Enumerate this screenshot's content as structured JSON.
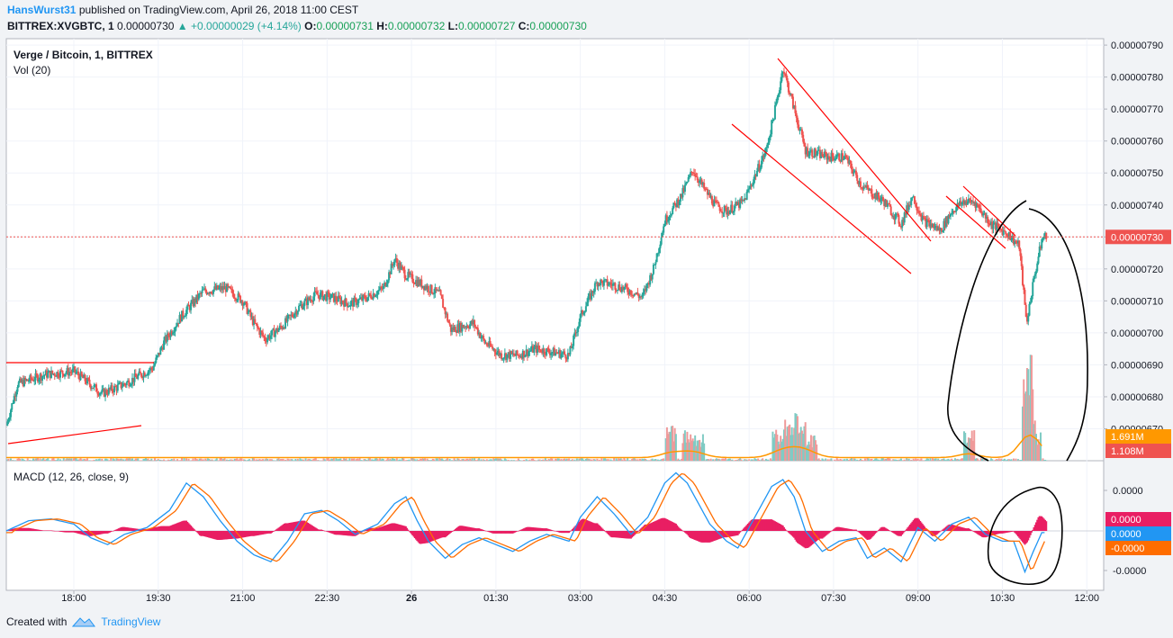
{
  "header": {
    "author": "HansWurst31",
    "published_text": "published on TradingView.com, April 26, 2018 11:00 CEST",
    "symbol": "BITTREX:XVGBTC, 1",
    "close_value": "0.00000730",
    "change_arrow": "▲",
    "change": "+0.00000029 (+4.14%)",
    "o_label": "O:",
    "o_value": "0.00000731",
    "h_label": "H:",
    "h_value": "0.00000732",
    "l_label": "L:",
    "l_value": "0.00000727",
    "c_label": "C:",
    "c_value": "0.00000730"
  },
  "legend": {
    "instrument": "Verge / Bitcoin, 1, BITTREX",
    "volume": "Vol (20)",
    "macd": "MACD (12, 26, close, 9)"
  },
  "footer": {
    "created_with": "Created with",
    "brand": "TradingView"
  },
  "colors": {
    "up": "#26a69a",
    "down": "#ef5350",
    "macd": "#2196f3",
    "signal": "#ff6d00",
    "hist": "#e91e63",
    "drawing": "#ff0000",
    "ink": "#000000"
  },
  "chart_data": {
    "type": "candlestick",
    "price_axis_labels": [
      "0.00000790",
      "0.00000780",
      "0.00000770",
      "0.00000760",
      "0.00000750",
      "0.00000740",
      "0.00000730",
      "0.00000720",
      "0.00000710",
      "0.00000700",
      "0.00000690",
      "0.00000680",
      "0.00000670"
    ],
    "price_ylim": [
      6.6e-06,
      7.92e-06
    ],
    "time_labels": [
      "18:00",
      "19:30",
      "21:00",
      "22:30",
      "26",
      "01:30",
      "03:00",
      "04:30",
      "06:00",
      "07:30",
      "09:00",
      "10:30",
      "12:00"
    ],
    "time_hours": [
      18,
      19.5,
      21,
      22.5,
      24,
      25.5,
      27,
      28.5,
      30,
      31.5,
      33,
      34.5,
      36
    ],
    "x_range_hours": [
      16.8,
      36.3
    ],
    "last_price_label": "0.00000730",
    "last_price": 7.3e-06,
    "price_path": [
      [
        16.8,
        671
      ],
      [
        17.0,
        684
      ],
      [
        17.5,
        687
      ],
      [
        18.0,
        688
      ],
      [
        18.5,
        681
      ],
      [
        18.9,
        684
      ],
      [
        19.2,
        687
      ],
      [
        19.4,
        689
      ],
      [
        19.6,
        697
      ],
      [
        19.9,
        705
      ],
      [
        20.3,
        713
      ],
      [
        20.7,
        714
      ],
      [
        21.0,
        710
      ],
      [
        21.2,
        703
      ],
      [
        21.4,
        698
      ],
      [
        21.7,
        702
      ],
      [
        22.0,
        708
      ],
      [
        22.3,
        712
      ],
      [
        22.6,
        711
      ],
      [
        22.9,
        709
      ],
      [
        23.2,
        711
      ],
      [
        23.5,
        714
      ],
      [
        23.7,
        723
      ],
      [
        23.9,
        718
      ],
      [
        24.2,
        715
      ],
      [
        24.5,
        712
      ],
      [
        24.7,
        701
      ],
      [
        25.1,
        703
      ],
      [
        25.3,
        697
      ],
      [
        25.6,
        693
      ],
      [
        25.9,
        693
      ],
      [
        26.2,
        695
      ],
      [
        26.5,
        694
      ],
      [
        26.8,
        693
      ],
      [
        27.0,
        705
      ],
      [
        27.3,
        716
      ],
      [
        27.6,
        715
      ],
      [
        27.9,
        713
      ],
      [
        28.1,
        711
      ],
      [
        28.3,
        720
      ],
      [
        28.5,
        735
      ],
      [
        28.8,
        743
      ],
      [
        29.0,
        751
      ],
      [
        29.2,
        745
      ],
      [
        29.4,
        740
      ],
      [
        29.6,
        738
      ],
      [
        29.9,
        741
      ],
      [
        30.0,
        745
      ],
      [
        30.3,
        757
      ],
      [
        30.5,
        773
      ],
      [
        30.6,
        783
      ],
      [
        30.8,
        770
      ],
      [
        31.0,
        757
      ],
      [
        31.4,
        755
      ],
      [
        31.7,
        755
      ],
      [
        32.0,
        746
      ],
      [
        32.4,
        741
      ],
      [
        32.7,
        734
      ],
      [
        32.9,
        743
      ],
      [
        33.1,
        735
      ],
      [
        33.4,
        732
      ],
      [
        33.6,
        738
      ],
      [
        33.8,
        741
      ],
      [
        34.0,
        741
      ],
      [
        34.3,
        734
      ],
      [
        34.6,
        731
      ],
      [
        34.8,
        727
      ],
      [
        34.93,
        703
      ],
      [
        35.05,
        716
      ],
      [
        35.2,
        729
      ],
      [
        35.3,
        731
      ]
    ],
    "volume_labels": [
      "1.691M",
      "1.108M"
    ],
    "volume_spikes": [
      [
        28.6,
        0.35
      ],
      [
        28.9,
        0.3
      ],
      [
        29.1,
        0.25
      ],
      [
        30.5,
        0.3
      ],
      [
        30.7,
        0.4
      ],
      [
        30.9,
        0.45
      ],
      [
        31.1,
        0.25
      ],
      [
        33.9,
        0.3
      ],
      [
        34.95,
        1.0
      ],
      [
        35.0,
        0.55
      ],
      [
        35.1,
        0.3
      ]
    ],
    "macd_axis_labels": [
      "0.0000",
      "-0.0000"
    ],
    "macd_value_labels": [
      "0.0000",
      "0.0000",
      "-0.0000"
    ],
    "macd_path": [
      [
        16.8,
        0
      ],
      [
        17.2,
        0.3
      ],
      [
        17.6,
        0.35
      ],
      [
        18.0,
        0.2
      ],
      [
        18.3,
        -0.2
      ],
      [
        18.6,
        -0.4
      ],
      [
        18.9,
        -0.1
      ],
      [
        19.3,
        0.1
      ],
      [
        19.7,
        0.6
      ],
      [
        20.0,
        1.4
      ],
      [
        20.3,
        1.0
      ],
      [
        20.6,
        0.3
      ],
      [
        20.9,
        -0.3
      ],
      [
        21.2,
        -0.7
      ],
      [
        21.5,
        -0.9
      ],
      [
        21.8,
        -0.3
      ],
      [
        22.1,
        0.5
      ],
      [
        22.4,
        0.6
      ],
      [
        22.7,
        0.3
      ],
      [
        23.0,
        -0.1
      ],
      [
        23.4,
        0.2
      ],
      [
        23.7,
        0.8
      ],
      [
        23.9,
        1.0
      ],
      [
        24.1,
        0.3
      ],
      [
        24.3,
        -0.3
      ],
      [
        24.6,
        -0.8
      ],
      [
        24.9,
        -0.4
      ],
      [
        25.2,
        -0.2
      ],
      [
        25.5,
        -0.4
      ],
      [
        25.8,
        -0.6
      ],
      [
        26.1,
        -0.3
      ],
      [
        26.4,
        -0.1
      ],
      [
        26.8,
        -0.3
      ],
      [
        27.0,
        0.4
      ],
      [
        27.3,
        1.0
      ],
      [
        27.6,
        0.5
      ],
      [
        27.9,
        -0.1
      ],
      [
        28.2,
        0.4
      ],
      [
        28.5,
        1.4
      ],
      [
        28.7,
        1.7
      ],
      [
        28.9,
        1.4
      ],
      [
        29.1,
        0.8
      ],
      [
        29.3,
        0.2
      ],
      [
        29.6,
        -0.3
      ],
      [
        29.8,
        -0.5
      ],
      [
        30.0,
        0.1
      ],
      [
        30.2,
        0.7
      ],
      [
        30.4,
        1.3
      ],
      [
        30.6,
        1.5
      ],
      [
        30.8,
        1.0
      ],
      [
        31.0,
        0.0
      ],
      [
        31.3,
        -0.6
      ],
      [
        31.6,
        -0.3
      ],
      [
        31.9,
        -0.2
      ],
      [
        32.1,
        -0.8
      ],
      [
        32.4,
        -0.5
      ],
      [
        32.7,
        -0.9
      ],
      [
        33.0,
        0.1
      ],
      [
        33.3,
        -0.3
      ],
      [
        33.6,
        0.2
      ],
      [
        33.9,
        0.4
      ],
      [
        34.2,
        -0.1
      ],
      [
        34.5,
        -0.3
      ],
      [
        34.7,
        -0.3
      ],
      [
        34.9,
        -1.2
      ],
      [
        35.05,
        -0.6
      ],
      [
        35.2,
        -0.05
      ]
    ]
  }
}
